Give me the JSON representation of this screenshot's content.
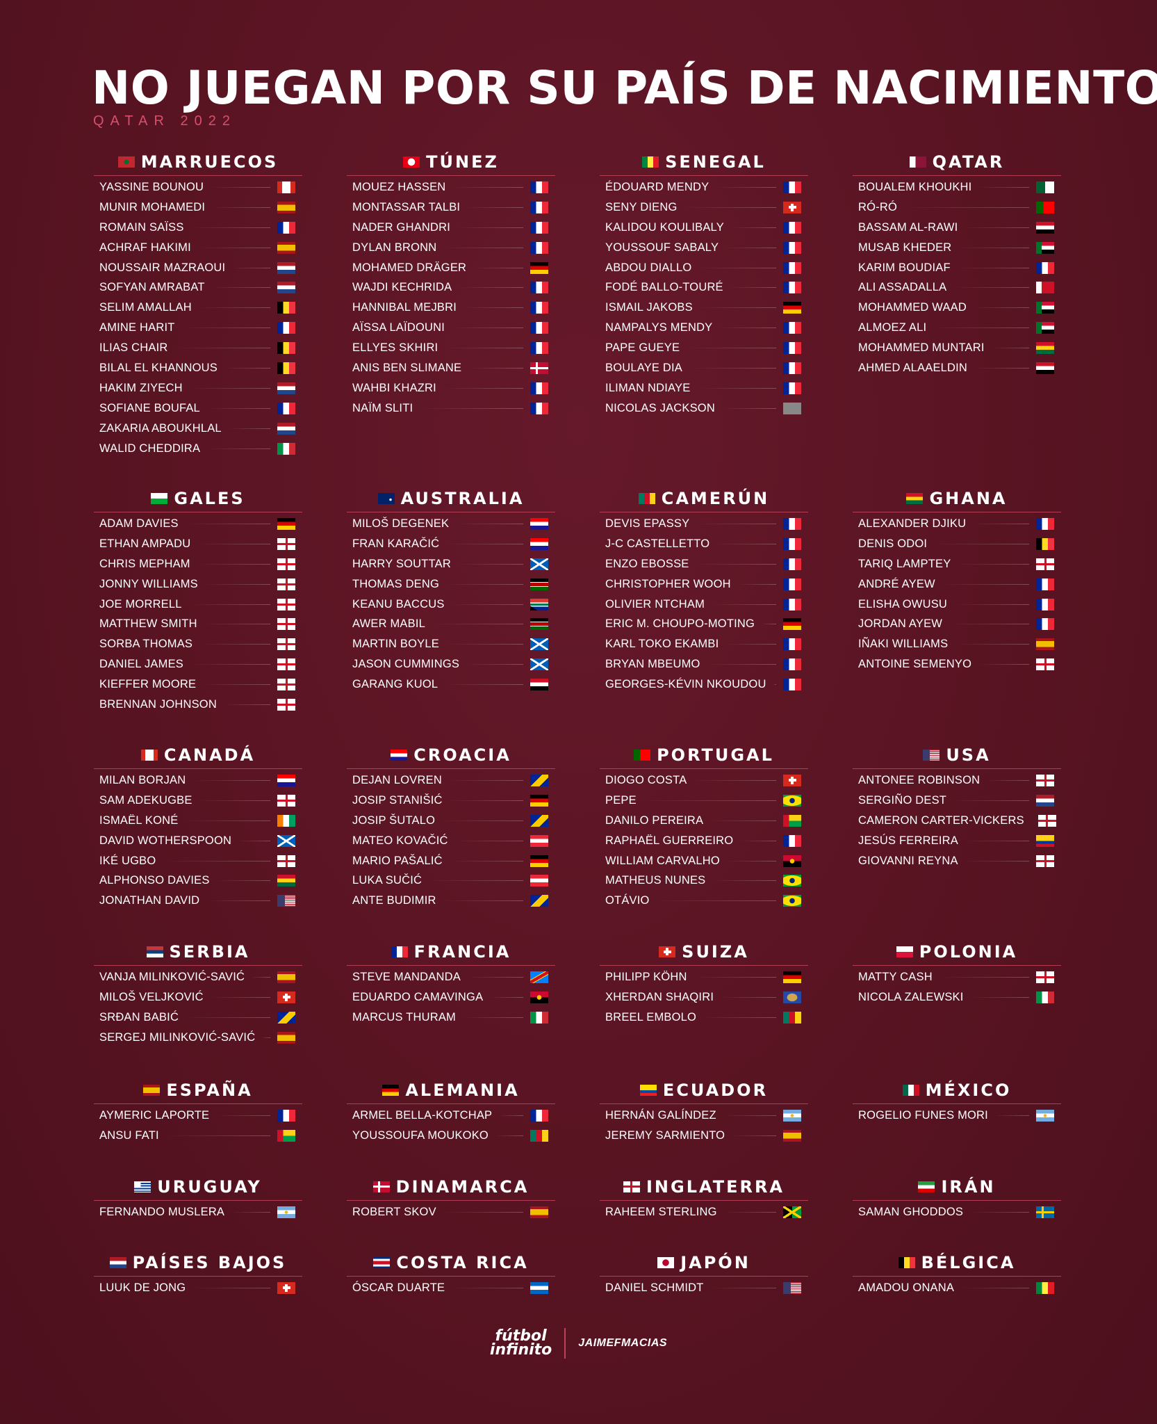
{
  "title": "NO JUEGAN POR SU PAÍS DE NACIMIENTO",
  "subtitle": "QATAR 2022",
  "footer": {
    "logo_line1": "fútbol",
    "logo_line2": "infinito",
    "credit": "JAIMEFMACIAS"
  },
  "colors": {
    "background": "#5a1422",
    "accent": "#d94f6b",
    "divider": "#b13e55"
  },
  "sections": [
    {
      "name": "MARRUECOS",
      "flag": "MAR",
      "players": [
        {
          "name": "YASSINE BOUNOU",
          "flag": "CAN"
        },
        {
          "name": "MUNIR MOHAMEDI",
          "flag": "ESP"
        },
        {
          "name": "ROMAIN SAÏSS",
          "flag": "FRA"
        },
        {
          "name": "ACHRAF HAKIMI",
          "flag": "ESP"
        },
        {
          "name": "NOUSSAIR MAZRAOUI",
          "flag": "NED"
        },
        {
          "name": "SOFYAN AMRABAT",
          "flag": "NED"
        },
        {
          "name": "SELIM AMALLAH",
          "flag": "BEL"
        },
        {
          "name": "AMINE HARIT",
          "flag": "FRA"
        },
        {
          "name": "ILIAS CHAIR",
          "flag": "BEL"
        },
        {
          "name": "BILAL EL KHANNOUS",
          "flag": "BEL"
        },
        {
          "name": "HAKIM ZIYECH",
          "flag": "NED"
        },
        {
          "name": "SOFIANE BOUFAL",
          "flag": "FRA"
        },
        {
          "name": "ZAKARIA ABOUKHLAL",
          "flag": "NED"
        },
        {
          "name": "WALID CHEDDIRA",
          "flag": "ITA"
        }
      ]
    },
    {
      "name": "TÚNEZ",
      "flag": "TUN",
      "players": [
        {
          "name": "MOUEZ HASSEN",
          "flag": "FRA"
        },
        {
          "name": "MONTASSAR TALBI",
          "flag": "FRA"
        },
        {
          "name": "NADER GHANDRI",
          "flag": "FRA"
        },
        {
          "name": "DYLAN BRONN",
          "flag": "FRA"
        },
        {
          "name": "MOHAMED DRÄGER",
          "flag": "GER"
        },
        {
          "name": "WAJDI KECHRIDA",
          "flag": "FRA"
        },
        {
          "name": "HANNIBAL MEJBRI",
          "flag": "FRA"
        },
        {
          "name": "AÏSSA LAÏDOUNI",
          "flag": "FRA"
        },
        {
          "name": "ELLYES SKHIRI",
          "flag": "FRA"
        },
        {
          "name": "ANIS BEN SLIMANE",
          "flag": "DEN"
        },
        {
          "name": "WAHBI KHAZRI",
          "flag": "FRA"
        },
        {
          "name": "NAÏM SLITI",
          "flag": "FRA"
        }
      ]
    },
    {
      "name": "SENEGAL",
      "flag": "SEN",
      "players": [
        {
          "name": "ÉDOUARD MENDY",
          "flag": "FRA"
        },
        {
          "name": "SENY DIENG",
          "flag": "SUI"
        },
        {
          "name": "KALIDOU KOULIBALY",
          "flag": "FRA"
        },
        {
          "name": "YOUSSOUF SABALY",
          "flag": "FRA"
        },
        {
          "name": "ABDOU DIALLO",
          "flag": "FRA"
        },
        {
          "name": "FODÉ BALLO-TOURÉ",
          "flag": "FRA"
        },
        {
          "name": "ISMAIL JAKOBS",
          "flag": "GER"
        },
        {
          "name": "NAMPALYS MENDY",
          "flag": "FRA"
        },
        {
          "name": "PAPE GUEYE",
          "flag": "FRA"
        },
        {
          "name": "BOULAYE DIA",
          "flag": "FRA"
        },
        {
          "name": "ILIMAN NDIAYE",
          "flag": "FRA"
        },
        {
          "name": "NICOLAS JACKSON",
          "flag": "GAM"
        }
      ]
    },
    {
      "name": "QATAR",
      "flag": "QAT",
      "players": [
        {
          "name": "BOUALEM KHOUKHI",
          "flag": "ALG"
        },
        {
          "name": "RÓ-RÓ",
          "flag": "POR"
        },
        {
          "name": "BASSAM AL-RAWI",
          "flag": "IRQ"
        },
        {
          "name": "MUSAB KHEDER",
          "flag": "SUD"
        },
        {
          "name": "KARIM BOUDIAF",
          "flag": "FRA"
        },
        {
          "name": "ALI ASSADALLA",
          "flag": "BHR"
        },
        {
          "name": "MOHAMMED WAAD",
          "flag": "SUD"
        },
        {
          "name": "ALMOEZ ALI",
          "flag": "SUD"
        },
        {
          "name": "MOHAMMED MUNTARI",
          "flag": "GHA"
        },
        {
          "name": "AHMED ALAAELDIN",
          "flag": "EGY"
        }
      ]
    },
    {
      "name": "GALES",
      "flag": "WAL",
      "players": [
        {
          "name": "ADAM DAVIES",
          "flag": "GER"
        },
        {
          "name": "ETHAN AMPADU",
          "flag": "ENG"
        },
        {
          "name": "CHRIS MEPHAM",
          "flag": "ENG"
        },
        {
          "name": "JONNY WILLIAMS",
          "flag": "ENG"
        },
        {
          "name": "JOE MORRELL",
          "flag": "ENG"
        },
        {
          "name": "MATTHEW SMITH",
          "flag": "ENG"
        },
        {
          "name": "SORBA THOMAS",
          "flag": "ENG"
        },
        {
          "name": "DANIEL JAMES",
          "flag": "ENG"
        },
        {
          "name": "KIEFFER MOORE",
          "flag": "ENG"
        },
        {
          "name": "BRENNAN JOHNSON",
          "flag": "ENG"
        }
      ]
    },
    {
      "name": "AUSTRALIA",
      "flag": "AUS",
      "players": [
        {
          "name": "MILOŠ DEGENEK",
          "flag": "CRO"
        },
        {
          "name": "FRAN KARAČIĆ",
          "flag": "CRO"
        },
        {
          "name": "HARRY SOUTTAR",
          "flag": "SCO"
        },
        {
          "name": "THOMAS DENG",
          "flag": "KEN"
        },
        {
          "name": "KEANU BACCUS",
          "flag": "RSA"
        },
        {
          "name": "AWER MABIL",
          "flag": "KEN"
        },
        {
          "name": "MARTIN BOYLE",
          "flag": "SCO"
        },
        {
          "name": "JASON CUMMINGS",
          "flag": "SCO"
        },
        {
          "name": "GARANG KUOL",
          "flag": "EGY"
        }
      ]
    },
    {
      "name": "CAMERÚN",
      "flag": "CMR",
      "players": [
        {
          "name": "DEVIS EPASSY",
          "flag": "FRA"
        },
        {
          "name": "J-C CASTELLETTO",
          "flag": "FRA"
        },
        {
          "name": "ENZO EBOSSE",
          "flag": "FRA"
        },
        {
          "name": "CHRISTOPHER WOOH",
          "flag": "FRA"
        },
        {
          "name": "OLIVIER NTCHAM",
          "flag": "FRA"
        },
        {
          "name": "ERIC M. CHOUPO-MOTING",
          "flag": "GER"
        },
        {
          "name": "KARL TOKO EKAMBI",
          "flag": "FRA"
        },
        {
          "name": "BRYAN MBEUMO",
          "flag": "FRA"
        },
        {
          "name": "GEORGES-KÉVIN NKOUDOU",
          "flag": "FRA"
        }
      ]
    },
    {
      "name": "GHANA",
      "flag": "GHA",
      "players": [
        {
          "name": "ALEXANDER DJIKU",
          "flag": "FRA"
        },
        {
          "name": "DENIS ODOI",
          "flag": "BEL"
        },
        {
          "name": "TARIQ LAMPTEY",
          "flag": "ENG"
        },
        {
          "name": "ANDRÉ AYEW",
          "flag": "FRA"
        },
        {
          "name": "ELISHA OWUSU",
          "flag": "FRA"
        },
        {
          "name": "JORDAN AYEW",
          "flag": "FRA"
        },
        {
          "name": "IÑAKI WILLIAMS",
          "flag": "ESP"
        },
        {
          "name": "ANTOINE SEMENYO",
          "flag": "ENG"
        }
      ]
    },
    {
      "name": "CANADÁ",
      "flag": "CAN",
      "players": [
        {
          "name": "MILAN BORJAN",
          "flag": "CRO"
        },
        {
          "name": "SAM ADEKUGBE",
          "flag": "ENG"
        },
        {
          "name": "ISMAËL KONÉ",
          "flag": "CIV"
        },
        {
          "name": "DAVID WOTHERSPOON",
          "flag": "SCO"
        },
        {
          "name": "IKÉ UGBO",
          "flag": "ENG"
        },
        {
          "name": "ALPHONSO DAVIES",
          "flag": "GHA"
        },
        {
          "name": "JONATHAN DAVID",
          "flag": "USA"
        }
      ]
    },
    {
      "name": "CROACIA",
      "flag": "CRO",
      "players": [
        {
          "name": "DEJAN LOVREN",
          "flag": "BIH"
        },
        {
          "name": "JOSIP STANIŠIĆ",
          "flag": "GER"
        },
        {
          "name": "JOSIP ŠUTALO",
          "flag": "BIH"
        },
        {
          "name": "MATEO KOVAČIĆ",
          "flag": "AUT"
        },
        {
          "name": "MARIO PAŠALIĆ",
          "flag": "GER"
        },
        {
          "name": "LUKA SUČIĆ",
          "flag": "AUT"
        },
        {
          "name": "ANTE BUDIMIR",
          "flag": "BIH"
        }
      ]
    },
    {
      "name": "PORTUGAL",
      "flag": "POR",
      "players": [
        {
          "name": "DIOGO COSTA",
          "flag": "SUI"
        },
        {
          "name": "PEPE",
          "flag": "BRA"
        },
        {
          "name": "DANILO PEREIRA",
          "flag": "GNB"
        },
        {
          "name": "RAPHAËL GUERREIRO",
          "flag": "FRA"
        },
        {
          "name": "WILLIAM CARVALHO",
          "flag": "ANG"
        },
        {
          "name": "MATHEUS NUNES",
          "flag": "BRA"
        },
        {
          "name": "OTÁVIO",
          "flag": "BRA"
        }
      ]
    },
    {
      "name": "USA",
      "flag": "USA",
      "players": [
        {
          "name": "ANTONEE ROBINSON",
          "flag": "ENG"
        },
        {
          "name": "SERGIÑO DEST",
          "flag": "NED"
        },
        {
          "name": "CAMERON CARTER-VICKERS",
          "flag": "ENG"
        },
        {
          "name": "JESÚS FERREIRA",
          "flag": "COL"
        },
        {
          "name": "GIOVANNI REYNA",
          "flag": "ENG"
        }
      ]
    },
    {
      "name": "SERBIA",
      "flag": "SRB",
      "players": [
        {
          "name": "VANJA MILINKOVIĆ-SAVIĆ",
          "flag": "ESP"
        },
        {
          "name": "MILOŠ VELJKOVIĆ",
          "flag": "SUI"
        },
        {
          "name": "SRĐAN BABIĆ",
          "flag": "BIH"
        },
        {
          "name": "SERGEJ MILINKOVIĆ-SAVIĆ",
          "flag": "ESP"
        }
      ]
    },
    {
      "name": "FRANCIA",
      "flag": "FRA",
      "players": [
        {
          "name": "STEVE MANDANDA",
          "flag": "COD"
        },
        {
          "name": "EDUARDO CAMAVINGA",
          "flag": "ANG"
        },
        {
          "name": "MARCUS THURAM",
          "flag": "ITA"
        }
      ]
    },
    {
      "name": "SUIZA",
      "flag": "SUI",
      "players": [
        {
          "name": "PHILIPP KÖHN",
          "flag": "GER"
        },
        {
          "name": "XHERDAN SHAQIRI",
          "flag": "KOS"
        },
        {
          "name": "BREEL EMBOLO",
          "flag": "CMR"
        }
      ]
    },
    {
      "name": "POLONIA",
      "flag": "POL",
      "players": [
        {
          "name": "MATTY CASH",
          "flag": "ENG"
        },
        {
          "name": "NICOLA ZALEWSKI",
          "flag": "ITA"
        }
      ]
    },
    {
      "name": "ESPAÑA",
      "flag": "ESP",
      "players": [
        {
          "name": "AYMERIC LAPORTE",
          "flag": "FRA"
        },
        {
          "name": "ANSU FATI",
          "flag": "GNB"
        }
      ]
    },
    {
      "name": "ALEMANIA",
      "flag": "GER",
      "players": [
        {
          "name": "ARMEL BELLA-KOTCHAP",
          "flag": "FRA"
        },
        {
          "name": "YOUSSOUFA MOUKOKO",
          "flag": "CMR"
        }
      ]
    },
    {
      "name": "ECUADOR",
      "flag": "ECU",
      "players": [
        {
          "name": "HERNÁN GALÍNDEZ",
          "flag": "ARG"
        },
        {
          "name": "JEREMY SARMIENTO",
          "flag": "ESP"
        }
      ]
    },
    {
      "name": "MÉXICO",
      "flag": "MEX",
      "players": [
        {
          "name": "ROGELIO FUNES MORI",
          "flag": "ARG"
        }
      ]
    },
    {
      "name": "URUGUAY",
      "flag": "URU",
      "players": [
        {
          "name": "FERNANDO MUSLERA",
          "flag": "ARG"
        }
      ]
    },
    {
      "name": "DINAMARCA",
      "flag": "DEN",
      "players": [
        {
          "name": "ROBERT SKOV",
          "flag": "ESP"
        }
      ]
    },
    {
      "name": "INGLATERRA",
      "flag": "ENG",
      "players": [
        {
          "name": "RAHEEM STERLING",
          "flag": "JAM"
        }
      ]
    },
    {
      "name": "IRÁN",
      "flag": "IRN",
      "players": [
        {
          "name": "SAMAN GHODDOS",
          "flag": "SWE"
        }
      ]
    },
    {
      "name": "PAÍSES BAJOS",
      "flag": "NED",
      "players": [
        {
          "name": "LUUK DE JONG",
          "flag": "SUI"
        }
      ]
    },
    {
      "name": "COSTA RICA",
      "flag": "CRC",
      "players": [
        {
          "name": "ÓSCAR DUARTE",
          "flag": "NCA"
        }
      ]
    },
    {
      "name": "JAPÓN",
      "flag": "JPN",
      "players": [
        {
          "name": "DANIEL SCHMIDT",
          "flag": "USA"
        }
      ]
    },
    {
      "name": "BÉLGICA",
      "flag": "BEL",
      "players": [
        {
          "name": "AMADOU ONANA",
          "flag": "SEN"
        }
      ]
    }
  ]
}
